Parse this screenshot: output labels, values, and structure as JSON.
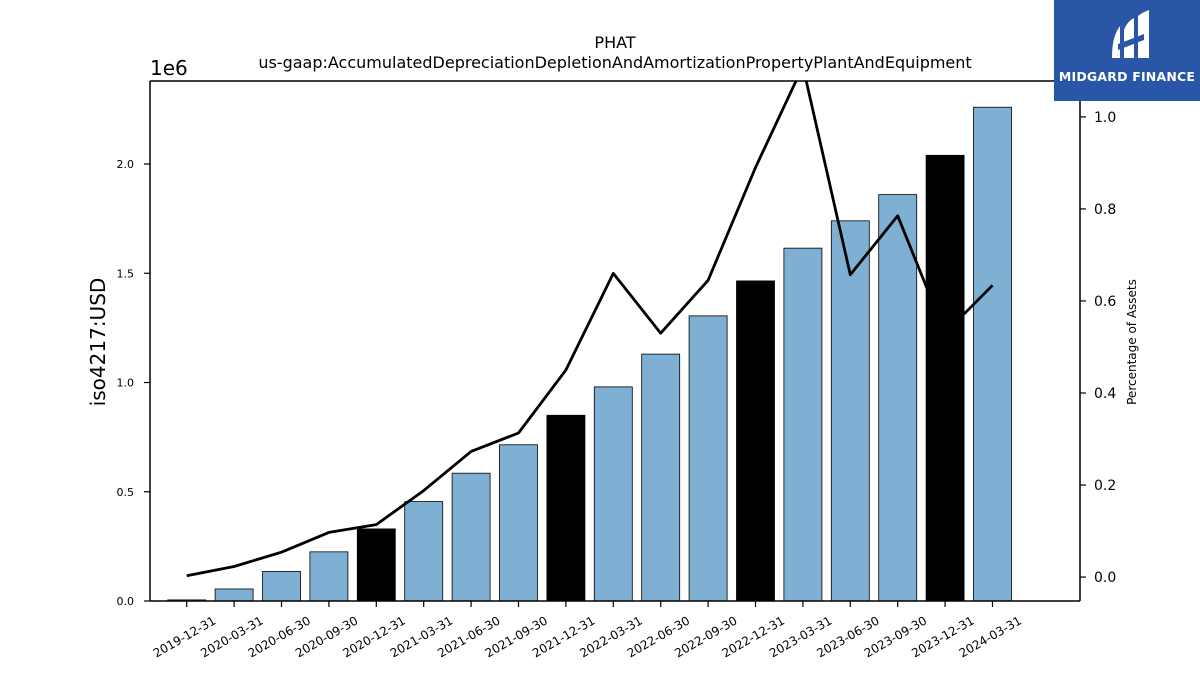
{
  "chart_data": {
    "type": "bar",
    "title": "PHAT",
    "subtitle": "us-gaap:AccumulatedDepreciationDepletionAndAmortizationPropertyPlantAndEquipment",
    "ylabel": "iso4217:USD",
    "y_offset_label": "1e6",
    "y2label": "Percentage of Assets",
    "ylim": [
      0,
      2380000
    ],
    "y2lim": [
      -0.052,
      1.078
    ],
    "categories": [
      "2019-12-31",
      "2020-03-31",
      "2020-06-30",
      "2020-09-30",
      "2020-12-31",
      "2021-03-31",
      "2021-06-30",
      "2021-09-30",
      "2021-12-31",
      "2022-03-31",
      "2022-06-30",
      "2022-09-30",
      "2022-12-31",
      "2023-03-31",
      "2023-06-30",
      "2023-09-30",
      "2023-12-31",
      "2024-03-31"
    ],
    "values": [
      5000,
      55000,
      135000,
      225000,
      330000,
      455000,
      585000,
      715000,
      850000,
      980000,
      1130000,
      1305000,
      1465000,
      1615000,
      1740000,
      1860000,
      2040000,
      2260000
    ],
    "bar_colors": [
      "#7fb0d4",
      "#7fb0d4",
      "#7fb0d4",
      "#7fb0d4",
      "#000000",
      "#7fb0d4",
      "#7fb0d4",
      "#7fb0d4",
      "#000000",
      "#7fb0d4",
      "#7fb0d4",
      "#7fb0d4",
      "#000000",
      "#7fb0d4",
      "#7fb0d4",
      "#7fb0d4",
      "#000000",
      "#7fb0d4"
    ],
    "line_series": {
      "axis": "right",
      "color": "#000000",
      "values": [
        0.003,
        0.023,
        0.054,
        0.097,
        0.114,
        0.188,
        0.273,
        0.313,
        0.45,
        0.66,
        0.53,
        0.645,
        0.89,
        1.11,
        0.657,
        0.785,
        0.53,
        0.634
      ]
    },
    "yticks": [
      "0.0",
      "0.5",
      "1.0",
      "1.5",
      "2.0"
    ],
    "ytick_values": [
      0,
      500000,
      1000000,
      1500000,
      2000000
    ],
    "y2ticks": [
      "0.0",
      "0.2",
      "0.4",
      "0.6",
      "0.8",
      "1.0"
    ],
    "y2tick_values": [
      0,
      0.2,
      0.4,
      0.6,
      0.8,
      1.0
    ],
    "grid": false,
    "legend": "none"
  },
  "logo": {
    "text": "MIDGARD FINANCE",
    "icon": "midgard-logo-icon",
    "background": "#2a56a8"
  }
}
